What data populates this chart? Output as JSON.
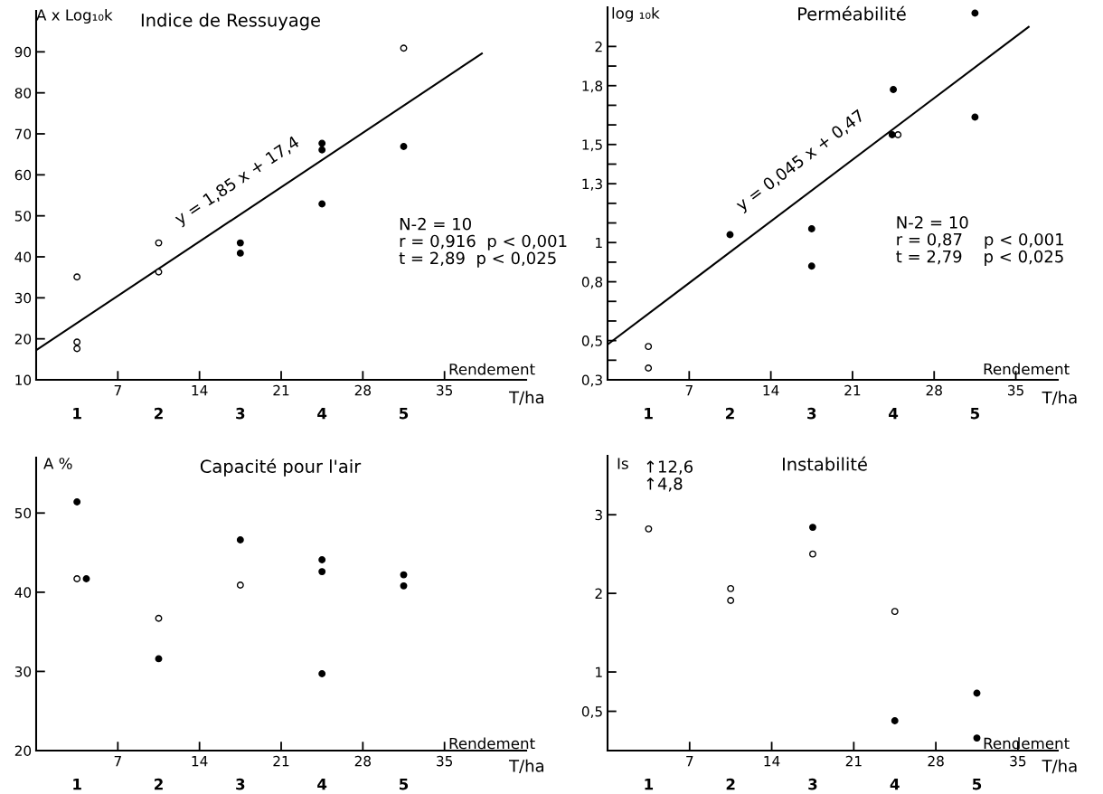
{
  "chart_data": [
    {
      "type": "scatter",
      "title": "Indice de Ressuyage",
      "ylabel": "A x Log₁₀k",
      "xlabel": "Rendement",
      "xlim": [
        0,
        42
      ],
      "xticks": [
        7,
        14,
        21,
        28,
        35
      ],
      "ylim": [
        10,
        100
      ],
      "yticks": [
        10,
        20,
        30,
        40,
        50,
        60,
        70,
        80,
        90
      ],
      "grid": false,
      "legend": false,
      "series": [
        {
          "color": "#ffffff",
          "marker": "circle",
          "x": [
            3.5,
            3.5,
            3.5,
            10.5,
            10.5,
            31.5
          ],
          "values": [
            35.1,
            19.2,
            17.6,
            43.4,
            36.3,
            90.9
          ]
        },
        {
          "color": "#000000",
          "marker": "circle",
          "x": [
            17.5,
            17.5,
            24.5,
            24.5,
            24.5,
            31.5
          ],
          "values": [
            43.4,
            40.9,
            67.7,
            66.1,
            52.9,
            66.9
          ]
        },
        {
          "type": "line",
          "color": "#000000",
          "x": [
            0,
            38.2
          ],
          "values": [
            17.2,
            89.6
          ]
        }
      ],
      "annotations": [
        "y = 1,85 x + 17,4",
        "N-2 = 10\nr = 0,916  p < 0,001\nt = 2,89  p < 0,025",
        "T/ha",
        "1",
        "2",
        "3",
        "4",
        "5"
      ]
    },
    {
      "type": "scatter",
      "title": "Perméabilité",
      "ylabel": "log ₁₀k",
      "xlabel": "Rendement",
      "xlim": [
        0,
        38.6
      ],
      "xticks": [
        7,
        14,
        21,
        28,
        35
      ],
      "ylim": [
        0.3,
        2.2
      ],
      "yticks": [
        {
          "value": 0.3,
          "label": "0,3"
        },
        {
          "value": 0.4,
          "label": null
        },
        {
          "value": 0.5,
          "label": "0,5"
        },
        {
          "value": 0.6,
          "label": null
        },
        {
          "value": 0.7,
          "label": null
        },
        {
          "value": 0.8,
          "label": "0,8"
        },
        {
          "value": 0.9,
          "label": null
        },
        {
          "value": 1,
          "label": "1"
        },
        {
          "value": 1.1,
          "label": null
        },
        {
          "value": 1.2,
          "label": null
        },
        {
          "value": 1.3,
          "label": "1,3"
        },
        {
          "value": 1.4,
          "label": null
        },
        {
          "value": 1.5,
          "label": "1,5"
        },
        {
          "value": 1.6,
          "label": null
        },
        {
          "value": 1.7,
          "label": null
        },
        {
          "value": 1.8,
          "label": "1,8"
        },
        {
          "value": 1.9,
          "label": null
        },
        {
          "value": 2,
          "label": "2"
        }
      ],
      "grid": false,
      "legend": false,
      "series": [
        {
          "color": "#ffffff",
          "marker": "circle",
          "x": [
            3.5,
            3.5,
            24.9
          ],
          "values": [
            0.47,
            0.36,
            1.55
          ]
        },
        {
          "color": "#000000",
          "marker": "circle",
          "x": [
            10.5,
            17.5,
            17.5,
            24.4,
            24.5,
            31.5,
            31.5
          ],
          "values": [
            1.04,
            1.07,
            0.88,
            1.55,
            1.78,
            2.17,
            1.64
          ]
        },
        {
          "type": "line",
          "color": "#000000",
          "x": [
            0,
            36.1
          ],
          "values": [
            0.48,
            2.1
          ]
        }
      ],
      "annotations": [
        "y = 0,045 x + 0,47",
        "N-2 = 10\nr = 0,87    p < 0,001\nt = 2,79    p < 0,025",
        "T/ha",
        "1",
        "2",
        "3",
        "4",
        "5"
      ]
    },
    {
      "type": "scatter",
      "title": "Capacité pour l'air",
      "ylabel": "A %",
      "xlabel": "Rendement",
      "xlim": [
        0,
        42
      ],
      "xticks": [
        7,
        14,
        21,
        28,
        35
      ],
      "annotations": [
        "T/ha",
        "1",
        "2",
        "3",
        "4",
        "5"
      ],
      "ylim": [
        20,
        57
      ],
      "yticks": [
        20,
        30,
        40,
        50
      ],
      "grid": false,
      "legend": false,
      "marker": "circle",
      "series": [
        {
          "color": "#ffffff",
          "x": [
            3.5,
            10.5,
            17.5
          ],
          "values": [
            41.7,
            36.7,
            40.9
          ]
        },
        {
          "color": "#000000",
          "x": [
            3.5,
            4.3,
            10.5,
            17.5,
            24.5,
            24.5,
            24.5,
            31.5,
            31.5
          ],
          "values": [
            51.4,
            41.7,
            31.6,
            46.6,
            44.1,
            42.6,
            29.7,
            42.2,
            40.8
          ]
        }
      ]
    },
    {
      "type": "scatter",
      "title": "Instabilité",
      "ylabel": "Is",
      "xlabel": "Rendement",
      "xlim": [
        0,
        38.4
      ],
      "xticks": [
        7,
        14,
        21,
        28,
        35
      ],
      "ylim": [
        0,
        3.75
      ],
      "yticks": [
        {
          "value": 0.5,
          "label": "0,5"
        },
        1,
        2,
        3
      ],
      "grid": false,
      "legend": false,
      "marker": "circle",
      "series": [
        {
          "color": "#ffffff",
          "x": [
            3.5,
            10.5,
            10.5,
            17.5,
            24.5
          ],
          "values": [
            2.82,
            2.06,
            1.91,
            2.5,
            1.77
          ]
        },
        {
          "color": "#000000",
          "x": [
            17.5,
            24.5,
            31.5,
            31.5
          ],
          "values": [
            2.84,
            0.38,
            0.73,
            0.16
          ]
        }
      ],
      "annotations": [
        "↑12,6\n↑4,8",
        "T/ha",
        "1",
        "2",
        "3",
        "4",
        "5"
      ]
    }
  ]
}
